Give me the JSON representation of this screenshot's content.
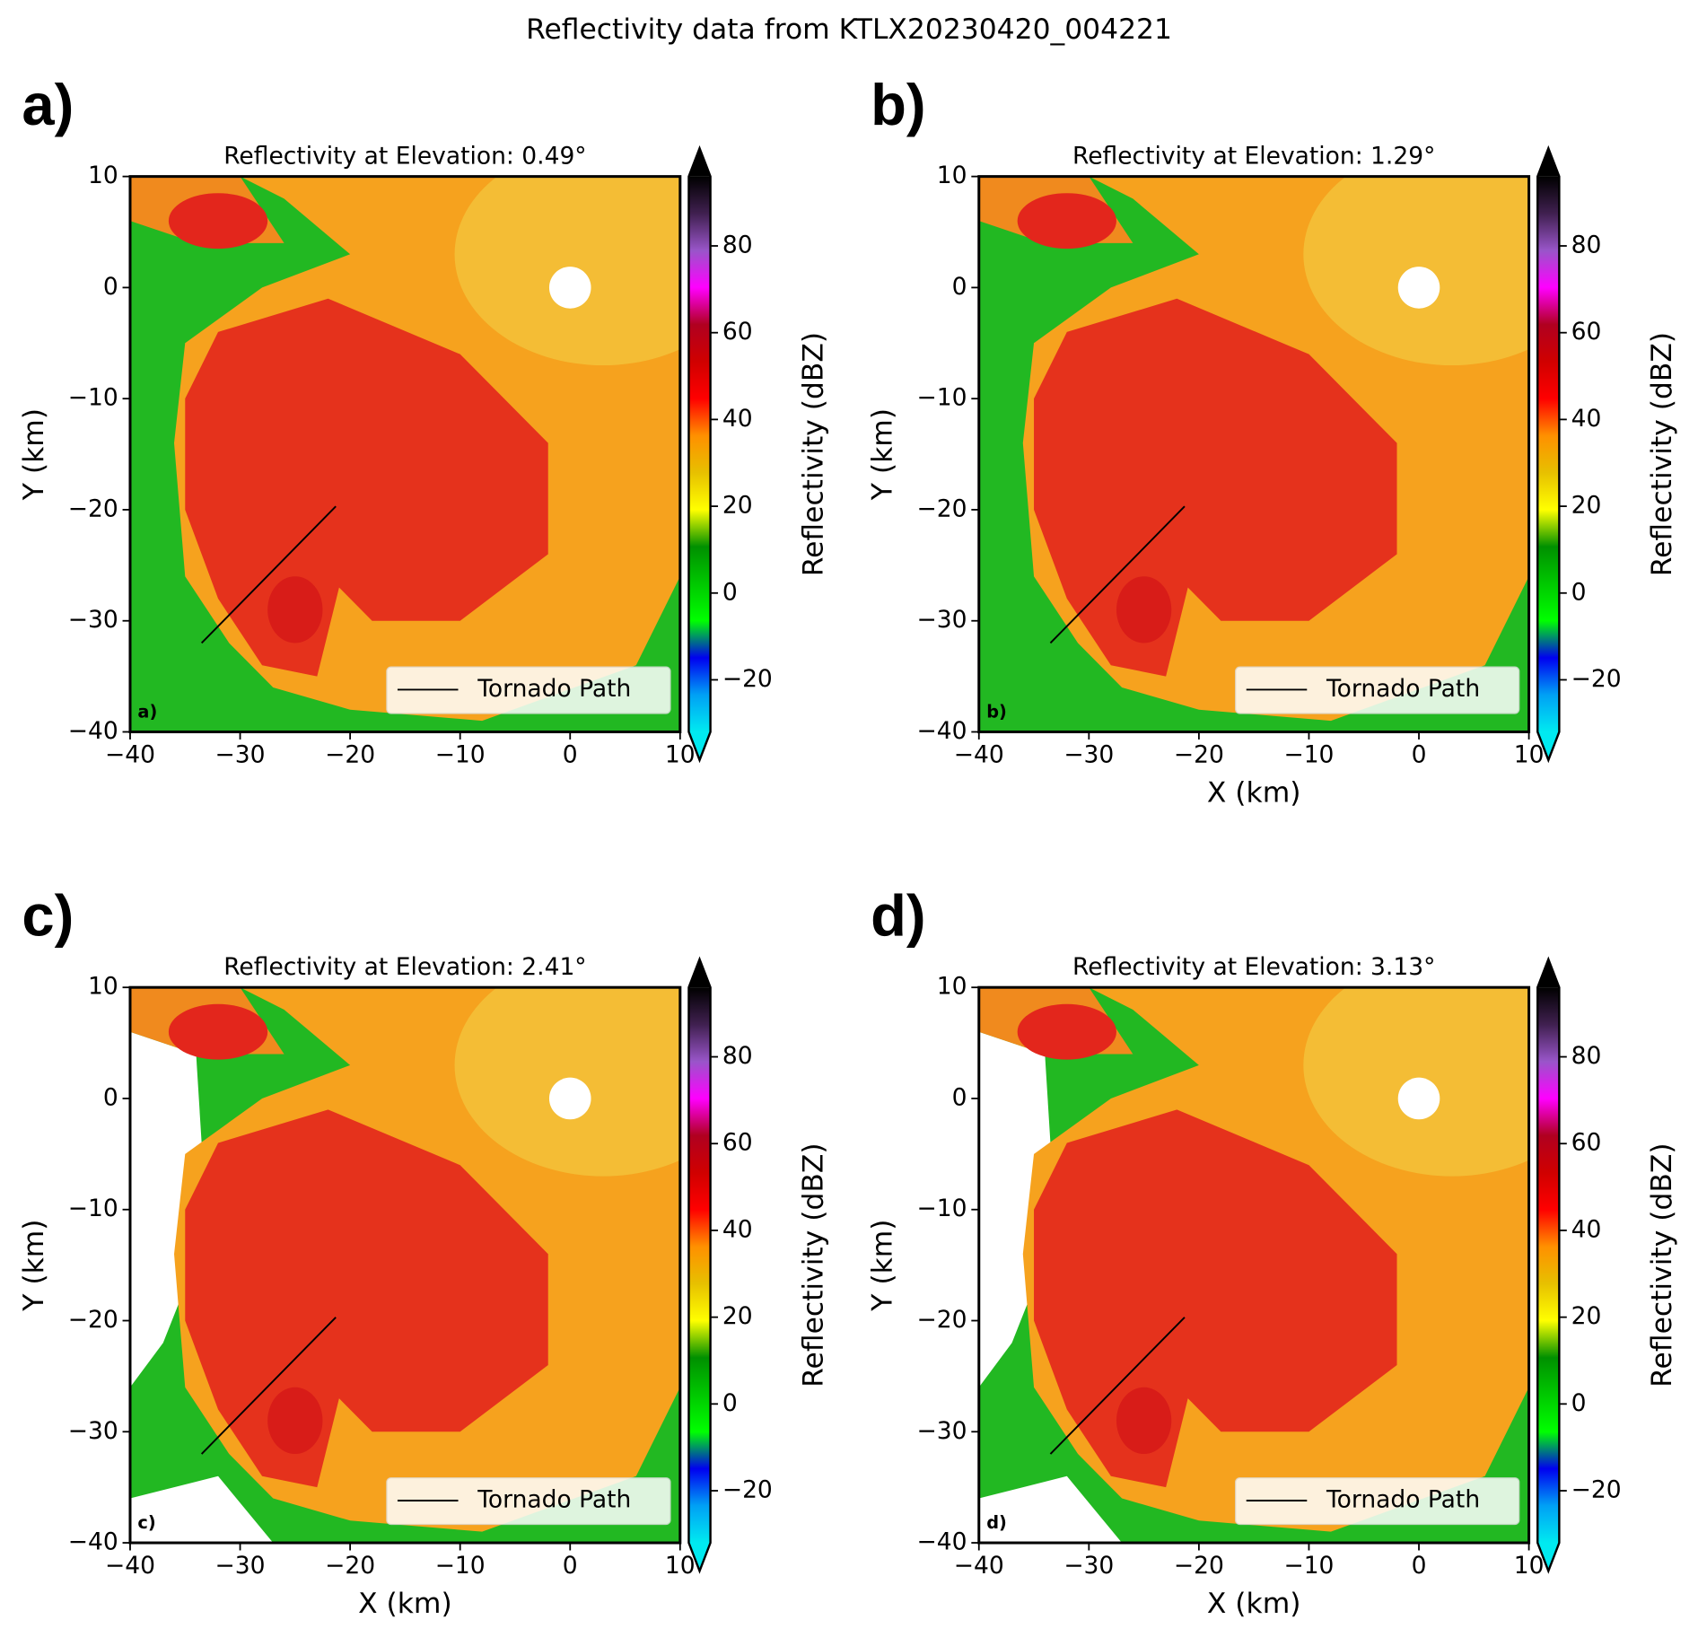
{
  "title": "Reflectivity data from KTLX20230420_004221",
  "chart_data": [
    {
      "type": "line",
      "panel_label": "a)",
      "title": "Reflectivity at Elevation: 0.49°",
      "ylabel": "Y (km)",
      "xlim": [
        -40,
        10
      ],
      "ylim": [
        -40,
        10
      ],
      "xticks": [
        {
          "value": -40,
          "label": "−40"
        },
        {
          "value": -30,
          "label": "−30"
        },
        {
          "value": -20,
          "label": "−20"
        },
        {
          "value": -10,
          "label": "−10"
        },
        0,
        10
      ],
      "yticks": [
        {
          "value": -40,
          "label": "−40"
        },
        {
          "value": -30,
          "label": "−30"
        },
        {
          "value": -20,
          "label": "−20"
        },
        {
          "value": -10,
          "label": "−10"
        },
        0,
        10
      ],
      "series": [
        {
          "name": "Tornado Path",
          "color": "#000000",
          "x": [
            -33.5,
            -21.3
          ],
          "values": [
            -32,
            -19.7
          ]
        }
      ],
      "legend": "lower right",
      "colorbar": {
        "label": "Reflectivity (dBZ)",
        "lim": [
          -32,
          96
        ],
        "extend": "both",
        "ticks": [
          {
            "value": -20,
            "label": "−20"
          },
          0,
          20,
          40,
          60,
          80
        ],
        "colormap": [
          "#00eaf0",
          "#00a0f5",
          "#0000f0",
          "#00ff00",
          "#00c800",
          "#009000",
          "#ffff00",
          "#e7c000",
          "#ff9000",
          "#ff0000",
          "#d00000",
          "#b00020",
          "#ff00ff",
          "#9955c9",
          "#402050",
          "#000000"
        ]
      }
    },
    {
      "type": "line",
      "panel_label": "b)",
      "title": "Reflectivity at Elevation: 1.29°",
      "xlabel": "X (km)",
      "ylabel": "Y (km)",
      "xlim": [
        -40,
        10
      ],
      "ylim": [
        -40,
        10
      ],
      "xticks": [
        {
          "value": -40,
          "label": "−40"
        },
        {
          "value": -30,
          "label": "−30"
        },
        {
          "value": -20,
          "label": "−20"
        },
        {
          "value": -10,
          "label": "−10"
        },
        0,
        10
      ],
      "yticks": [
        {
          "value": -40,
          "label": "−40"
        },
        {
          "value": -30,
          "label": "−30"
        },
        {
          "value": -20,
          "label": "−20"
        },
        {
          "value": -10,
          "label": "−10"
        },
        0,
        10
      ],
      "series": [
        {
          "name": "Tornado Path",
          "color": "#000000",
          "x": [
            -33.5,
            -21.3
          ],
          "values": [
            -32,
            -19.7
          ]
        }
      ],
      "legend": "lower right",
      "colorbar": {
        "label": "Reflectivity (dBZ)",
        "lim": [
          -32,
          96
        ],
        "extend": "both",
        "ticks": [
          {
            "value": -20,
            "label": "−20"
          },
          0,
          20,
          40,
          60,
          80
        ],
        "colormap": [
          "#00eaf0",
          "#00a0f5",
          "#0000f0",
          "#00ff00",
          "#00c800",
          "#009000",
          "#ffff00",
          "#e7c000",
          "#ff9000",
          "#ff0000",
          "#d00000",
          "#b00020",
          "#ff00ff",
          "#9955c9",
          "#402050",
          "#000000"
        ]
      }
    },
    {
      "type": "line",
      "panel_label": "c)",
      "title": "Reflectivity at Elevation: 2.41°",
      "xlabel": "X (km)",
      "ylabel": "Y (km)",
      "xlim": [
        -40,
        10
      ],
      "ylim": [
        -40,
        10
      ],
      "xticks": [
        {
          "value": -40,
          "label": "−40"
        },
        {
          "value": -30,
          "label": "−30"
        },
        {
          "value": -20,
          "label": "−20"
        },
        {
          "value": -10,
          "label": "−10"
        },
        0,
        10
      ],
      "yticks": [
        {
          "value": -40,
          "label": "−40"
        },
        {
          "value": -30,
          "label": "−30"
        },
        {
          "value": -20,
          "label": "−20"
        },
        {
          "value": -10,
          "label": "−10"
        },
        0,
        10
      ],
      "series": [
        {
          "name": "Tornado Path",
          "color": "#000000",
          "x": [
            -33.5,
            -21.3
          ],
          "values": [
            -32,
            -19.7
          ]
        }
      ],
      "legend": "lower right",
      "colorbar": {
        "label": "Reflectivity (dBZ)",
        "lim": [
          -32,
          96
        ],
        "extend": "both",
        "ticks": [
          {
            "value": -20,
            "label": "−20"
          },
          0,
          20,
          40,
          60,
          80
        ],
        "colormap": [
          "#00eaf0",
          "#00a0f5",
          "#0000f0",
          "#00ff00",
          "#00c800",
          "#009000",
          "#ffff00",
          "#e7c000",
          "#ff9000",
          "#ff0000",
          "#d00000",
          "#b00020",
          "#ff00ff",
          "#9955c9",
          "#402050",
          "#000000"
        ]
      }
    },
    {
      "type": "line",
      "panel_label": "d)",
      "title": "Reflectivity at Elevation: 3.13°",
      "xlabel": "X (km)",
      "ylabel": "Y (km)",
      "xlim": [
        -40,
        10
      ],
      "ylim": [
        -40,
        10
      ],
      "xticks": [
        {
          "value": -40,
          "label": "−40"
        },
        {
          "value": -30,
          "label": "−30"
        },
        {
          "value": -20,
          "label": "−20"
        },
        {
          "value": -10,
          "label": "−10"
        },
        0,
        10
      ],
      "yticks": [
        {
          "value": -40,
          "label": "−40"
        },
        {
          "value": -30,
          "label": "−30"
        },
        {
          "value": -20,
          "label": "−20"
        },
        {
          "value": -10,
          "label": "−10"
        },
        0,
        10
      ],
      "series": [
        {
          "name": "Tornado Path",
          "color": "#000000",
          "x": [
            -33.5,
            -21.3
          ],
          "values": [
            -32,
            -19.7
          ]
        }
      ],
      "legend": "lower right",
      "colorbar": {
        "label": "Reflectivity (dBZ)",
        "lim": [
          -32,
          96
        ],
        "extend": "both",
        "ticks": [
          {
            "value": -20,
            "label": "−20"
          },
          0,
          20,
          40,
          60,
          80
        ],
        "colormap": [
          "#00eaf0",
          "#00a0f5",
          "#0000f0",
          "#00ff00",
          "#00c800",
          "#009000",
          "#ffff00",
          "#e7c000",
          "#ff9000",
          "#ff0000",
          "#d00000",
          "#b00020",
          "#ff00ff",
          "#9955c9",
          "#402050",
          "#000000"
        ]
      }
    }
  ]
}
